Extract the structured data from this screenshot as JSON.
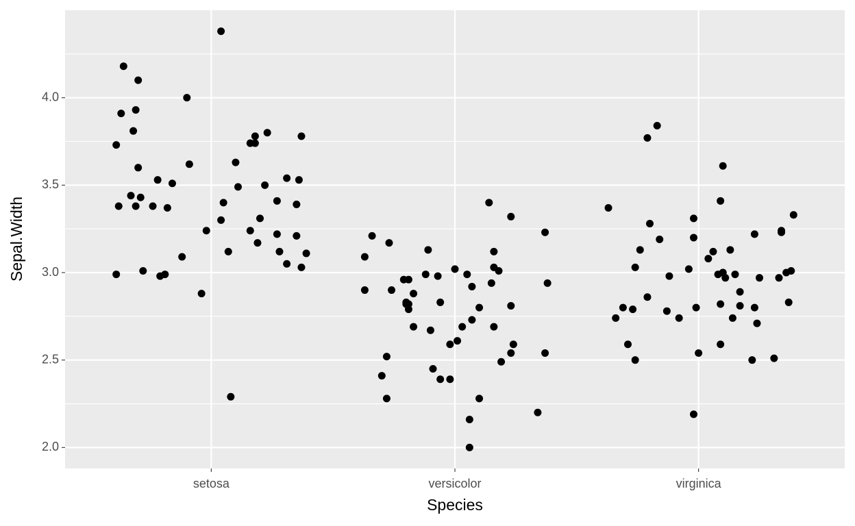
{
  "chart_data": {
    "type": "scatter",
    "xlabel": "Species",
    "ylabel": "Sepal.Width",
    "xlim": [
      0.4,
      3.6
    ],
    "xticks": [
      {
        "value": 1,
        "label": "setosa"
      },
      {
        "value": 2,
        "label": "versicolor"
      },
      {
        "value": 3,
        "label": "virginica"
      }
    ],
    "ylim": [
      1.88,
      4.5
    ],
    "yticks": [
      {
        "value": 2,
        "label": "2.0"
      },
      {
        "value": 2.5,
        "label": "2.5"
      },
      {
        "value": 3,
        "label": "3.0"
      },
      {
        "value": 3.5,
        "label": "3.5"
      },
      {
        "value": 4,
        "label": "4.0"
      }
    ],
    "y_minor_ticks": [
      2.25,
      2.75,
      3.25,
      3.75,
      4.25
    ],
    "grid": true,
    "series": [
      {
        "color": "#000000",
        "x": [
          0.61,
          0.64,
          0.7,
          0.63,
          0.69,
          0.68,
          0.9,
          1.04,
          0.7,
          0.91,
          0.78,
          0.84,
          0.67,
          0.62,
          0.69,
          0.71,
          0.76,
          0.82,
          0.61,
          0.72,
          0.79,
          0.81,
          0.88,
          0.96,
          0.98,
          1.08,
          1.05,
          1.04,
          1.07,
          1.1,
          1.11,
          1.16,
          1.18,
          1.18,
          1.23,
          1.37,
          1.16,
          1.19,
          1.2,
          1.22,
          1.27,
          1.31,
          1.36,
          1.35,
          1.27,
          1.28,
          1.31,
          1.35,
          1.39,
          1.37,
          1.66,
          1.63,
          1.63,
          1.73,
          1.74,
          1.72,
          1.7,
          1.72,
          1.79,
          1.81,
          1.8,
          1.81,
          1.81,
          1.83,
          1.83,
          1.89,
          1.88,
          1.9,
          1.91,
          1.93,
          1.94,
          1.94,
          1.98,
          1.98,
          2.0,
          2.01,
          2.03,
          2.05,
          2.07,
          2.07,
          2.06,
          2.06,
          2.1,
          2.1,
          2.14,
          2.16,
          2.16,
          2.18,
          2.15,
          2.16,
          2.19,
          2.23,
          2.24,
          2.23,
          2.23,
          2.34,
          2.37,
          2.38,
          2.37,
          1.8,
          2.63,
          2.66,
          2.69,
          2.73,
          2.71,
          2.74,
          2.74,
          2.76,
          2.79,
          2.83,
          2.8,
          2.84,
          2.79,
          2.87,
          2.88,
          2.92,
          2.96,
          2.98,
          2.98,
          2.99,
          3.0,
          2.98,
          3.04,
          3.06,
          3.09,
          3.1,
          3.08,
          3.1,
          3.11,
          3.09,
          3.09,
          3.13,
          3.15,
          3.14,
          3.17,
          3.17,
          3.22,
          3.23,
          3.23,
          3.24,
          3.25,
          3.31,
          3.33,
          3.34,
          3.34,
          3.36,
          3.38,
          3.37,
          3.39,
          3.1
        ],
        "values": [
          3.73,
          4.18,
          4.1,
          3.91,
          3.93,
          3.81,
          4.0,
          4.38,
          3.6,
          3.62,
          3.53,
          3.51,
          3.44,
          3.38,
          3.38,
          3.43,
          3.38,
          3.37,
          2.99,
          3.01,
          2.98,
          2.99,
          3.09,
          2.88,
          3.24,
          2.29,
          3.4,
          3.3,
          3.12,
          3.63,
          3.49,
          3.74,
          3.74,
          3.78,
          3.8,
          3.78,
          3.24,
          3.17,
          3.31,
          3.5,
          3.41,
          3.54,
          3.53,
          3.39,
          3.22,
          3.12,
          3.05,
          3.21,
          3.11,
          3.03,
          3.21,
          3.09,
          2.9,
          3.17,
          2.9,
          2.52,
          2.41,
          2.28,
          2.96,
          2.96,
          2.83,
          2.79,
          2.82,
          2.88,
          2.69,
          3.13,
          2.99,
          2.67,
          2.45,
          2.98,
          2.83,
          2.39,
          2.39,
          2.59,
          3.02,
          2.61,
          2.69,
          2.99,
          2.92,
          2.73,
          2.16,
          2.0,
          2.28,
          2.8,
          3.4,
          3.12,
          3.03,
          3.01,
          2.94,
          2.69,
          2.49,
          2.54,
          2.59,
          2.81,
          3.32,
          2.2,
          3.23,
          2.94,
          2.54,
          2.82,
          3.37,
          2.74,
          2.8,
          2.79,
          2.59,
          2.5,
          3.03,
          3.13,
          3.77,
          3.84,
          3.28,
          3.19,
          2.86,
          2.78,
          2.98,
          2.74,
          3.02,
          3.31,
          3.2,
          2.8,
          2.54,
          2.19,
          3.08,
          3.12,
          3.41,
          3.61,
          2.99,
          3.0,
          2.97,
          2.82,
          2.59,
          3.13,
          2.99,
          2.74,
          2.89,
          2.81,
          2.5,
          3.22,
          2.8,
          2.71,
          2.97,
          2.51,
          2.97,
          3.24,
          3.23,
          3.0,
          3.01,
          2.83,
          3.33,
          3.0
        ]
      }
    ]
  }
}
